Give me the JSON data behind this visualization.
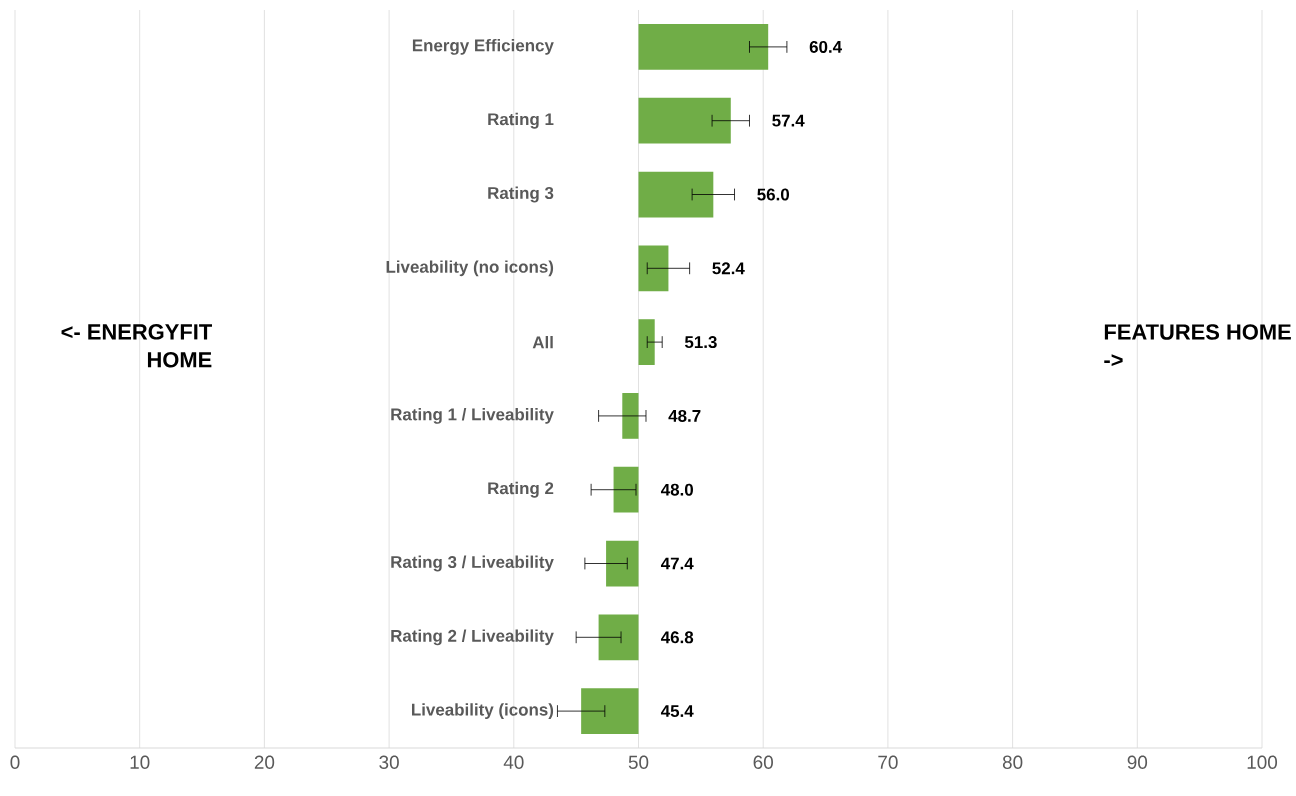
{
  "chart_data": {
    "type": "bar",
    "orientation": "horizontal",
    "categories": [
      "Energy Efficiency",
      "Rating 1",
      "Rating 3",
      "Liveability (no icons)",
      "All",
      "Rating 1 / Liveability",
      "Rating 2",
      "Rating 3 / Liveability",
      "Rating 2 / Liveability",
      "Liveability (icons)"
    ],
    "base": [
      50,
      50,
      50,
      50,
      50,
      50,
      50,
      50,
      50,
      50
    ],
    "values": [
      10.4,
      7.4,
      6.0,
      2.4,
      1.3,
      -1.3,
      -2.0,
      -2.6,
      -3.2,
      -4.6
    ],
    "value_labels": [
      "60.4",
      "57.4",
      "56.0",
      "52.4",
      "51.3",
      "48.7",
      "48.0",
      "47.4",
      "46.8",
      "45.4"
    ],
    "errors": [
      1.5,
      1.5,
      1.7,
      1.7,
      0.6,
      1.9,
      1.8,
      1.7,
      1.8,
      1.9
    ],
    "color": "#70ad47",
    "xlim": [
      0,
      100
    ],
    "xticks": [
      0,
      10,
      20,
      30,
      40,
      50,
      60,
      70,
      80,
      90,
      100
    ],
    "grid": "x",
    "annotations": [
      "<- ENERGYFIT HOME",
      "FEATURES HOME   ->"
    ]
  }
}
